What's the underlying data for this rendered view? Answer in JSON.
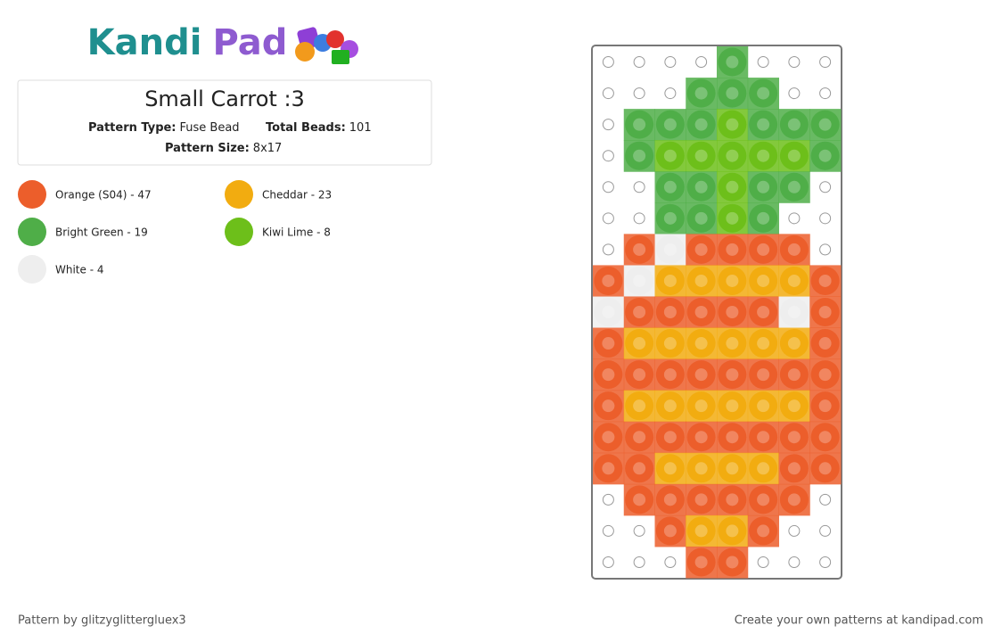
{
  "header": {
    "logo_left": "Kandi",
    "logo_right": "Pad"
  },
  "pattern": {
    "title": "Small Carrot :3",
    "type_label": "Pattern Type:",
    "type_value": "Fuse Bead",
    "beads_label": "Total Beads:",
    "beads_value": 101,
    "size_label": "Pattern Size:",
    "size_value": "8x17"
  },
  "legend": [
    {
      "code": "O",
      "label": "Orange (S04) - 47",
      "color": "#ec5e2b"
    },
    {
      "code": "C",
      "label": "Cheddar - 23",
      "color": "#f2ac10"
    },
    {
      "code": "G",
      "label": "Bright Green - 19",
      "color": "#4fae48"
    },
    {
      "code": "K",
      "label": "Kiwi Lime - 8",
      "color": "#6dbf1a"
    },
    {
      "code": "W",
      "label": "White - 4",
      "color": "#eeeeee"
    }
  ],
  "grid": [
    "....G...",
    "...GGG..",
    ".GGGKGGG",
    ".GKKKKKG",
    "..GGKGG.",
    "..GGKG..",
    ".OWOOOO.",
    "OWCCCCCO",
    "WOOOOOWO",
    "OCCCCCCO",
    "OOOOOOOO",
    "OCCCCCCO",
    "OOOOOOOO",
    "OOCCCCOO",
    ".OOOOOO.",
    "..OCCO..",
    "...OO..."
  ],
  "footer": {
    "credit": "Pattern by glitzyglittergluex3",
    "promo": "Create your own patterns at kandipad.com"
  }
}
